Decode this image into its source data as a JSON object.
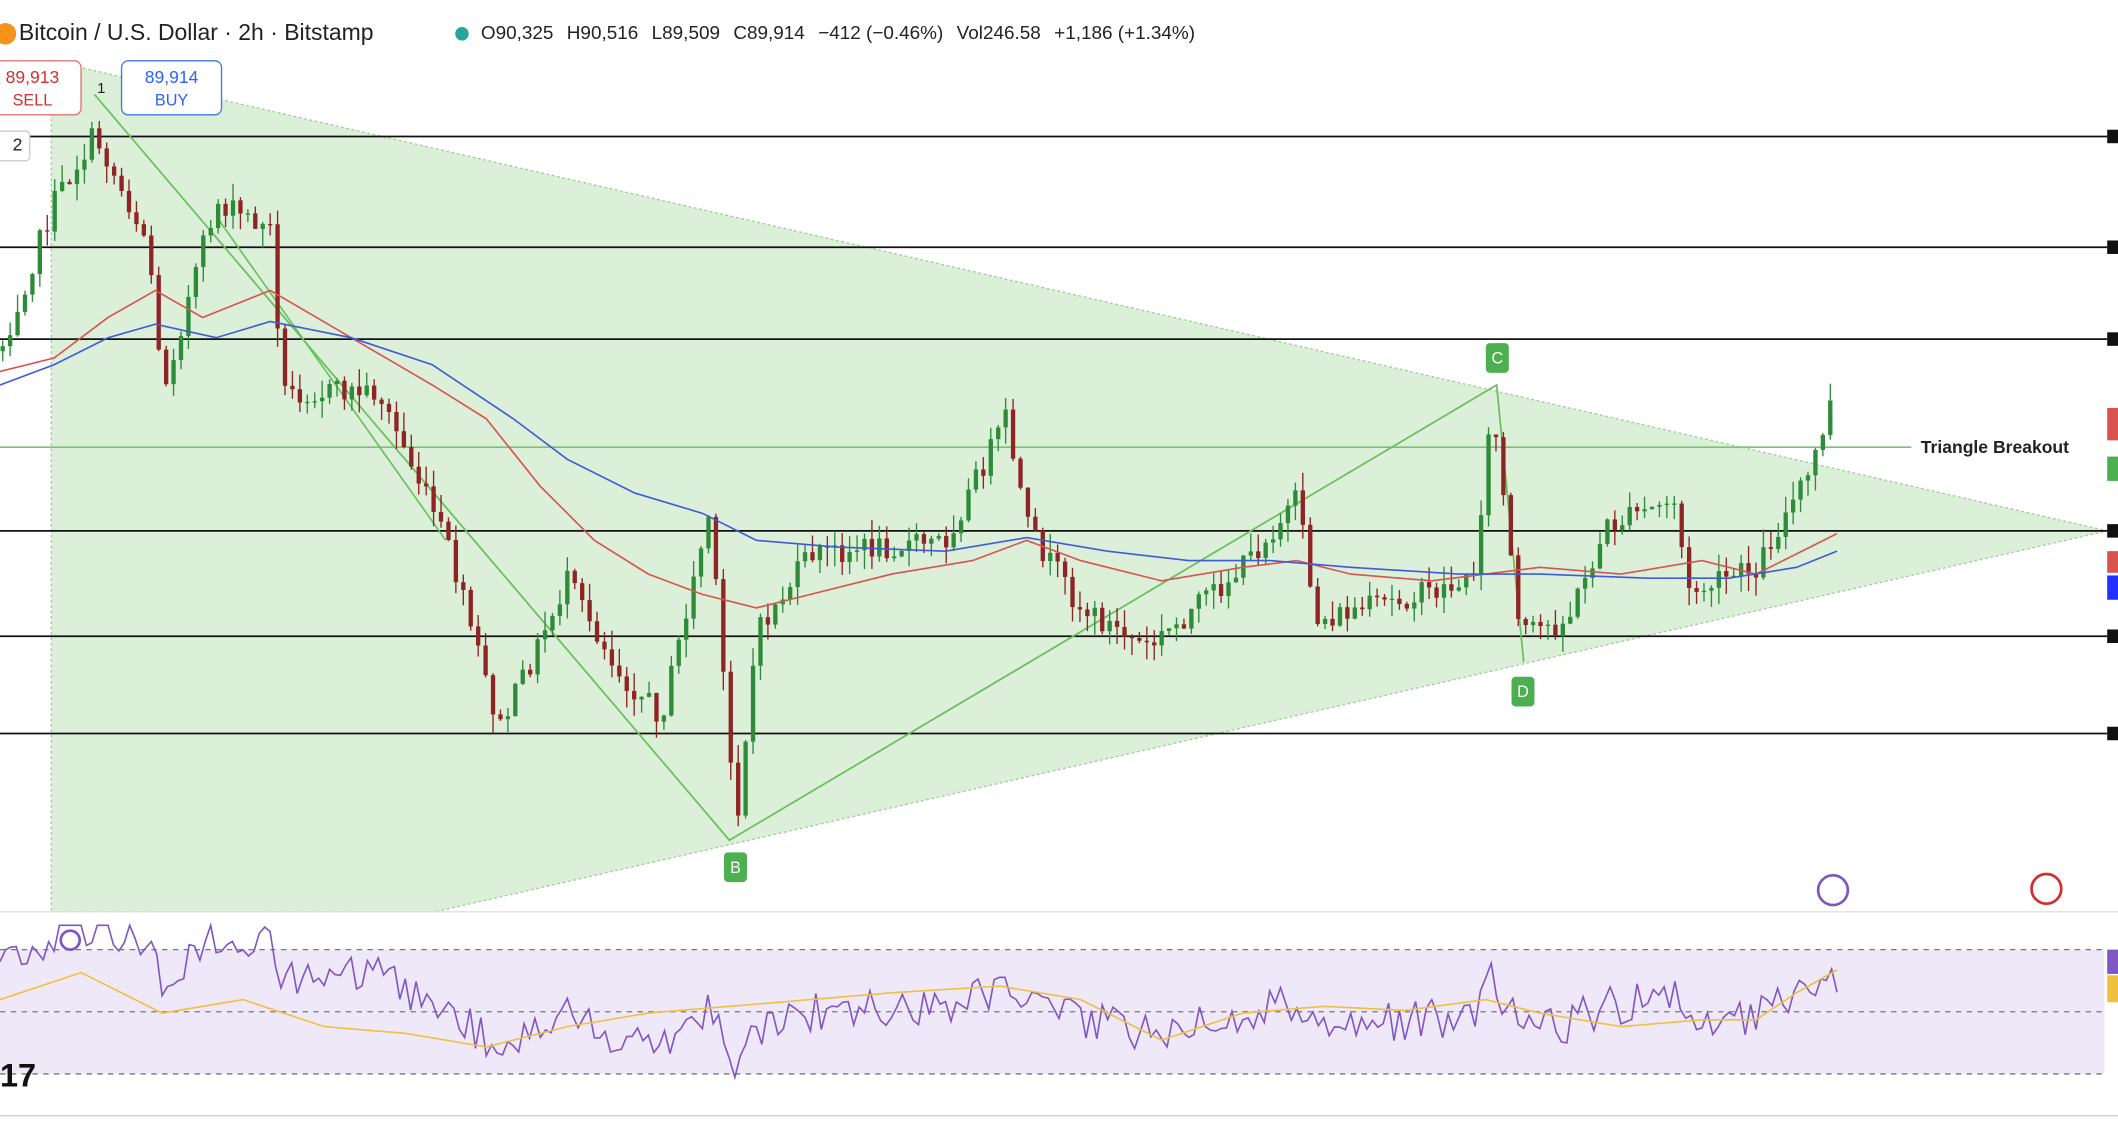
{
  "header": {
    "symbol": "Bitcoin / U.S. Dollar · 2h · Bitstamp",
    "open": "O90,325",
    "high": "H90,516",
    "low": "L89,509",
    "close": "C89,914",
    "change": "−412 (−0.46%)",
    "volume": "Vol246.58",
    "volume_change": "+1,186 (+1.34%)"
  },
  "trade": {
    "sell_price": "89,913",
    "sell_label": "SELL",
    "quantity": "1",
    "buy_price": "89,914",
    "buy_label": "BUY"
  },
  "toolbar": {
    "count": "2"
  },
  "annotations": {
    "points": [
      "B",
      "C",
      "D"
    ],
    "breakout": "Triangle Breakout"
  },
  "logo": "17"
}
